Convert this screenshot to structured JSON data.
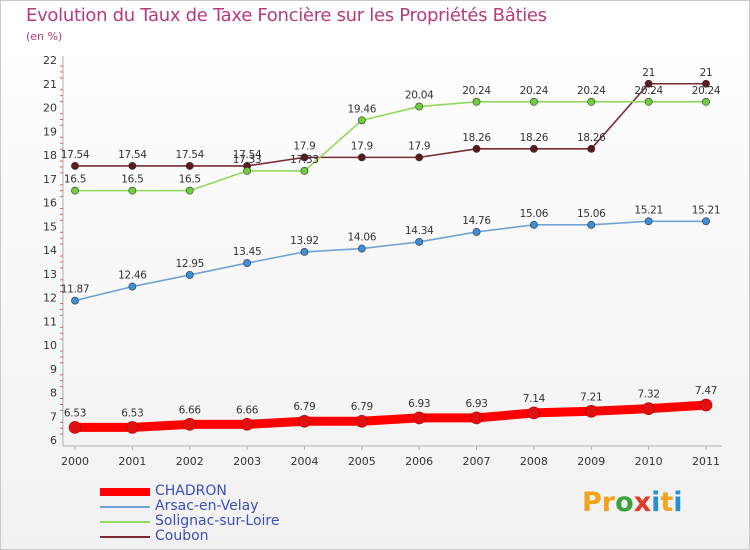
{
  "title": "Evolution du Taux de Taxe Foncière sur les Propriétés Bâties",
  "subtitle": "(en %)",
  "brand": {
    "letters": [
      "P",
      "r",
      "o",
      "x",
      "i",
      "t",
      "i"
    ],
    "colors": [
      "#f2a31b",
      "#f2a31b",
      "#3aa13c",
      "#e03b24",
      "#2a8fd1",
      "#f2a31b",
      "#2a8fd1"
    ]
  },
  "chart_data": {
    "type": "line",
    "title": "Evolution du Taux de Taxe Foncière sur les Propriétés Bâties",
    "ylabel": "(en %)",
    "xlabel": "",
    "ylim": [
      6,
      22
    ],
    "grid": false,
    "legend_position": "bottom-left",
    "x": [
      "2000",
      "2001",
      "2002",
      "2003",
      "2004",
      "2005",
      "2006",
      "2007",
      "2008",
      "2009",
      "2010",
      "2011"
    ],
    "y_ticks": [
      "6",
      "7",
      "8",
      "9",
      "10",
      "11",
      "12",
      "13",
      "14",
      "15",
      "16",
      "17",
      "18",
      "19",
      "20",
      "21",
      "22"
    ],
    "series": [
      {
        "name": "CHADRON",
        "color": "#ff0000",
        "values": [
          6.53,
          6.53,
          6.66,
          6.66,
          6.79,
          6.79,
          6.93,
          6.93,
          7.14,
          7.21,
          7.32,
          7.47
        ],
        "labels": [
          "6.53",
          "6.53",
          "6.66",
          "6.66",
          "6.79",
          "6.79",
          "6.93",
          "6.93",
          "7.14",
          "7.21",
          "7.32",
          "7.47"
        ]
      },
      {
        "name": "Arsac-en-Velay",
        "color": "#6fa3d6",
        "values": [
          11.87,
          12.46,
          12.95,
          13.45,
          13.92,
          14.06,
          14.34,
          14.76,
          15.06,
          15.06,
          15.21,
          15.21
        ],
        "labels": [
          "11.87",
          "12.46",
          "12.95",
          "13.45",
          "13.92",
          "14.06",
          "14.34",
          "14.76",
          "15.06",
          "15.06",
          "15.21",
          "15.21"
        ]
      },
      {
        "name": "Solignac-sur-Loire",
        "color": "#8fd95a",
        "values": [
          16.5,
          16.5,
          16.5,
          17.33,
          17.33,
          19.46,
          20.04,
          20.24,
          20.24,
          20.24,
          20.24,
          20.24
        ],
        "labels": [
          "16.5",
          "16.5",
          "16.5",
          "17.33",
          "17.33",
          "19.46",
          "20.04",
          "20.24",
          "20.24",
          "20.24",
          "20.24",
          "20.24"
        ]
      },
      {
        "name": "Coubon",
        "color": "#7a2a30",
        "values": [
          17.54,
          17.54,
          17.54,
          17.54,
          17.9,
          17.9,
          17.9,
          18.26,
          18.26,
          18.26,
          21,
          21
        ],
        "labels": [
          "17.54",
          "17.54",
          "17.54",
          "17.54",
          "17.9",
          "17.9",
          "17.9",
          "18.26",
          "18.26",
          "18.26",
          "21",
          "21"
        ]
      }
    ]
  }
}
